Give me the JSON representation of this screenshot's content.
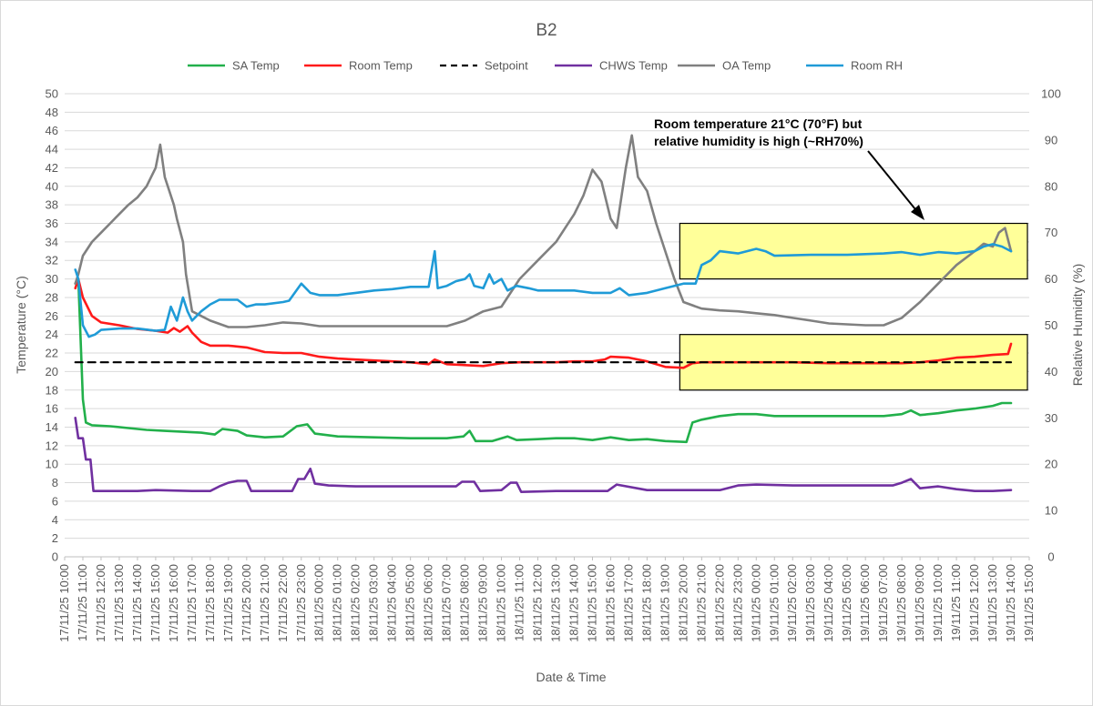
{
  "chart_data": {
    "type": "line",
    "title": "B2",
    "xlabel": "Date & Time",
    "ylabel": "Temperature (°C)",
    "y2label": "Relative Humidity (%)",
    "ylim": [
      0,
      50
    ],
    "y2lim": [
      0,
      100
    ],
    "yticks": [
      "0",
      "2",
      "4",
      "6",
      "8",
      "10",
      "12",
      "14",
      "16",
      "18",
      "20",
      "22",
      "24",
      "26",
      "28",
      "30",
      "32",
      "34",
      "36",
      "38",
      "40",
      "42",
      "44",
      "46",
      "48",
      "50"
    ],
    "y2ticks": [
      "0",
      "10",
      "20",
      "30",
      "40",
      "50",
      "60",
      "70",
      "80",
      "90",
      "100"
    ],
    "xlim": [
      "17/11/25 10:00",
      "19/11/25 15:00"
    ],
    "xticks": [
      "17/11/25 10:00",
      "17/11/25 11:00",
      "17/11/25 12:00",
      "17/11/25 13:00",
      "17/11/25 14:00",
      "17/11/25 15:00",
      "17/11/25 16:00",
      "17/11/25 17:00",
      "17/11/25 18:00",
      "17/11/25 19:00",
      "17/11/25 20:00",
      "17/11/25 21:00",
      "17/11/25 22:00",
      "17/11/25 23:00",
      "18/11/25 00:00",
      "18/11/25 01:00",
      "18/11/25 02:00",
      "18/11/25 03:00",
      "18/11/25 04:00",
      "18/11/25 05:00",
      "18/11/25 06:00",
      "18/11/25 07:00",
      "18/11/25 08:00",
      "18/11/25 09:00",
      "18/11/25 10:00",
      "18/11/25 11:00",
      "18/11/25 12:00",
      "18/11/25 13:00",
      "18/11/25 14:00",
      "18/11/25 15:00",
      "18/11/25 16:00",
      "18/11/25 17:00",
      "18/11/25 18:00",
      "18/11/25 19:00",
      "18/11/25 20:00",
      "18/11/25 21:00",
      "18/11/25 22:00",
      "18/11/25 23:00",
      "19/11/25 00:00",
      "19/11/25 01:00",
      "19/11/25 02:00",
      "19/11/25 03:00",
      "19/11/25 04:00",
      "19/11/25 05:00",
      "19/11/25 06:00",
      "19/11/25 07:00",
      "19/11/25 08:00",
      "19/11/25 09:00",
      "19/11/25 10:00",
      "19/11/25 11:00",
      "19/11/25 12:00",
      "19/11/25 13:00",
      "19/11/25 14:00",
      "19/11/25 15:00"
    ],
    "legend_position": "top",
    "grid": true,
    "series": [
      {
        "name": "SA Temp",
        "axis": "left",
        "color": "#22b04b",
        "dash": false,
        "x": [
          "17/11/25 10:35",
          "17/11/25 10:45",
          "17/11/25 11:00",
          "17/11/25 11:10",
          "17/11/25 11:30",
          "17/11/25 12:30",
          "17/11/25 13:30",
          "17/11/25 14:30",
          "17/11/25 15:30",
          "17/11/25 16:30",
          "17/11/25 17:30",
          "17/11/25 18:15",
          "17/11/25 18:40",
          "17/11/25 19:30",
          "17/11/25 20:00",
          "17/11/25 21:00",
          "17/11/25 22:00",
          "17/11/25 22:45",
          "17/11/25 23:20",
          "17/11/25 23:45",
          "18/11/25 01:00",
          "18/11/25 03:00",
          "18/11/25 05:00",
          "18/11/25 07:00",
          "18/11/25 07:55",
          "18/11/25 08:15",
          "18/11/25 08:35",
          "18/11/25 09:30",
          "18/11/25 10:20",
          "18/11/25 10:50",
          "18/11/25 12:00",
          "18/11/25 13:00",
          "18/11/25 14:00",
          "18/11/25 15:00",
          "18/11/25 16:00",
          "18/11/25 17:00",
          "18/11/25 18:00",
          "18/11/25 19:00",
          "18/11/25 20:10",
          "18/11/25 20:30",
          "18/11/25 21:00",
          "18/11/25 22:00",
          "18/11/25 23:00",
          "19/11/25 00:00",
          "19/11/25 01:00",
          "19/11/25 03:00",
          "19/11/25 05:00",
          "19/11/25 07:00",
          "19/11/25 08:00",
          "19/11/25 08:30",
          "19/11/25 09:00",
          "19/11/25 10:00",
          "19/11/25 11:00",
          "19/11/25 12:00",
          "19/11/25 13:00",
          "19/11/25 13:30",
          "19/11/25 14:00"
        ],
        "values": [
          29.5,
          30,
          17,
          14.5,
          14.2,
          14.1,
          13.9,
          13.7,
          13.6,
          13.5,
          13.4,
          13.2,
          13.8,
          13.6,
          13.1,
          12.9,
          13.0,
          14.1,
          14.3,
          13.3,
          13.0,
          12.9,
          12.8,
          12.8,
          13.0,
          13.6,
          12.5,
          12.5,
          13.0,
          12.6,
          12.7,
          12.8,
          12.8,
          12.6,
          12.9,
          12.6,
          12.7,
          12.5,
          12.4,
          14.5,
          14.8,
          15.2,
          15.4,
          15.4,
          15.2,
          15.2,
          15.2,
          15.2,
          15.4,
          15.8,
          15.3,
          15.5,
          15.8,
          16.0,
          16.3,
          16.6,
          16.6
        ]
      },
      {
        "name": "Room Temp",
        "axis": "left",
        "color": "#ff1a1a",
        "dash": false,
        "x": [
          "17/11/25 10:35",
          "17/11/25 10:45",
          "17/11/25 11:00",
          "17/11/25 11:30",
          "17/11/25 12:00",
          "17/11/25 13:00",
          "17/11/25 14:00",
          "17/11/25 15:00",
          "17/11/25 15:40",
          "17/11/25 16:00",
          "17/11/25 16:20",
          "17/11/25 16:45",
          "17/11/25 17:00",
          "17/11/25 17:30",
          "17/11/25 18:00",
          "17/11/25 19:00",
          "17/11/25 20:00",
          "17/11/25 21:00",
          "17/11/25 22:00",
          "17/11/25 23:00",
          "18/11/25 00:00",
          "18/11/25 01:00",
          "18/11/25 02:00",
          "18/11/25 03:00",
          "18/11/25 04:00",
          "18/11/25 05:00",
          "18/11/25 06:00",
          "18/11/25 06:20",
          "18/11/25 07:00",
          "18/11/25 08:00",
          "18/11/25 09:00",
          "18/11/25 10:00",
          "18/11/25 11:00",
          "18/11/25 12:00",
          "18/11/25 13:00",
          "18/11/25 14:00",
          "18/11/25 15:00",
          "18/11/25 15:40",
          "18/11/25 16:00",
          "18/11/25 17:00",
          "18/11/25 18:00",
          "18/11/25 19:00",
          "18/11/25 20:00",
          "18/11/25 20:30",
          "18/11/25 21:00",
          "18/11/25 22:00",
          "18/11/25 23:00",
          "19/11/25 00:00",
          "19/11/25 02:00",
          "19/11/25 04:00",
          "19/11/25 06:00",
          "19/11/25 08:00",
          "19/11/25 09:00",
          "19/11/25 10:00",
          "19/11/25 11:00",
          "19/11/25 12:00",
          "19/11/25 13:00",
          "19/11/25 13:50",
          "19/11/25 14:00"
        ],
        "values": [
          29,
          30,
          28,
          26,
          25.3,
          25,
          24.6,
          24.4,
          24.2,
          24.7,
          24.3,
          24.9,
          24.2,
          23.2,
          22.8,
          22.8,
          22.6,
          22.1,
          22.0,
          22.0,
          21.6,
          21.4,
          21.3,
          21.2,
          21.1,
          21.0,
          20.8,
          21.3,
          20.8,
          20.7,
          20.6,
          20.9,
          21.0,
          21.0,
          21.0,
          21.1,
          21.1,
          21.3,
          21.6,
          21.5,
          21.1,
          20.5,
          20.4,
          20.9,
          21.0,
          21.0,
          21.0,
          21.0,
          21.0,
          20.9,
          20.9,
          20.9,
          21.0,
          21.2,
          21.5,
          21.6,
          21.8,
          21.9,
          23.0
        ]
      },
      {
        "name": "Setpoint",
        "axis": "left",
        "color": "#000000",
        "dash": true,
        "x": [
          "17/11/25 10:35",
          "19/11/25 14:00"
        ],
        "values": [
          21,
          21
        ]
      },
      {
        "name": "CHWS Temp",
        "axis": "left",
        "color": "#7030a0",
        "dash": false,
        "x": [
          "17/11/25 10:35",
          "17/11/25 10:45",
          "17/11/25 11:00",
          "17/11/25 11:10",
          "17/11/25 11:25",
          "17/11/25 11:35",
          "17/11/25 12:00",
          "17/11/25 14:00",
          "17/11/25 15:00",
          "17/11/25 17:00",
          "17/11/25 18:00",
          "17/11/25 18:30",
          "17/11/25 19:00",
          "17/11/25 19:30",
          "17/11/25 20:00",
          "17/11/25 20:15",
          "17/11/25 21:00",
          "17/11/25 22:30",
          "17/11/25 22:50",
          "17/11/25 23:10",
          "17/11/25 23:30",
          "17/11/25 23:45",
          "18/11/25 00:30",
          "18/11/25 02:00",
          "18/11/25 04:00",
          "18/11/25 06:00",
          "18/11/25 07:30",
          "18/11/25 07:50",
          "18/11/25 08:30",
          "18/11/25 08:50",
          "18/11/25 10:00",
          "18/11/25 10:30",
          "18/11/25 10:50",
          "18/11/25 11:05",
          "18/11/25 13:00",
          "18/11/25 15:00",
          "18/11/25 15:50",
          "18/11/25 16:20",
          "18/11/25 18:00",
          "18/11/25 20:00",
          "18/11/25 21:00",
          "18/11/25 22:00",
          "18/11/25 23:00",
          "19/11/25 00:00",
          "19/11/25 02:00",
          "19/11/25 04:00",
          "19/11/25 06:00",
          "19/11/25 07:30",
          "19/11/25 08:00",
          "19/11/25 08:30",
          "19/11/25 09:00",
          "19/11/25 10:00",
          "19/11/25 11:00",
          "19/11/25 12:00",
          "19/11/25 13:00",
          "19/11/25 14:00"
        ],
        "values": [
          15,
          12.8,
          12.8,
          10.5,
          10.5,
          7.1,
          7.1,
          7.1,
          7.2,
          7.1,
          7.1,
          7.6,
          8.0,
          8.2,
          8.2,
          7.1,
          7.1,
          7.1,
          8.4,
          8.4,
          9.5,
          7.9,
          7.7,
          7.6,
          7.6,
          7.6,
          7.6,
          8.1,
          8.1,
          7.1,
          7.2,
          8.0,
          8.0,
          7.0,
          7.1,
          7.1,
          7.1,
          7.8,
          7.2,
          7.2,
          7.2,
          7.2,
          7.7,
          7.8,
          7.7,
          7.7,
          7.7,
          7.7,
          8.0,
          8.4,
          7.4,
          7.6,
          7.3,
          7.1,
          7.1,
          7.2
        ]
      },
      {
        "name": "OA Temp",
        "axis": "left",
        "color": "#808080",
        "dash": false,
        "x": [
          "17/11/25 10:35",
          "17/11/25 10:45",
          "17/11/25 11:00",
          "17/11/25 11:30",
          "17/11/25 12:00",
          "17/11/25 12:30",
          "17/11/25 13:00",
          "17/11/25 13:30",
          "17/11/25 14:00",
          "17/11/25 14:30",
          "17/11/25 15:00",
          "17/11/25 15:15",
          "17/11/25 15:30",
          "17/11/25 16:00",
          "17/11/25 16:10",
          "17/11/25 16:30",
          "17/11/25 16:40",
          "17/11/25 17:00",
          "17/11/25 17:30",
          "17/11/25 18:00",
          "17/11/25 19:00",
          "17/11/25 20:00",
          "17/11/25 21:00",
          "17/11/25 22:00",
          "17/11/25 23:00",
          "18/11/25 00:00",
          "18/11/25 02:00",
          "18/11/25 04:00",
          "18/11/25 06:00",
          "18/11/25 07:00",
          "18/11/25 08:00",
          "18/11/25 09:00",
          "18/11/25 10:00",
          "18/11/25 11:00",
          "18/11/25 12:00",
          "18/11/25 13:00",
          "18/11/25 13:30",
          "18/11/25 14:00",
          "18/11/25 14:30",
          "18/11/25 15:00",
          "18/11/25 15:30",
          "18/11/25 16:00",
          "18/11/25 16:20",
          "18/11/25 16:50",
          "18/11/25 17:10",
          "18/11/25 17:30",
          "18/11/25 18:00",
          "18/11/25 18:30",
          "18/11/25 19:00",
          "18/11/25 19:30",
          "18/11/25 20:00",
          "18/11/25 21:00",
          "18/11/25 22:00",
          "18/11/25 23:00",
          "19/11/25 00:00",
          "19/11/25 01:00",
          "19/11/25 02:00",
          "19/11/25 03:00",
          "19/11/25 04:00",
          "19/11/25 05:00",
          "19/11/25 06:00",
          "19/11/25 07:00",
          "19/11/25 08:00",
          "19/11/25 09:00",
          "19/11/25 10:00",
          "19/11/25 11:00",
          "19/11/25 12:00",
          "19/11/25 12:30",
          "19/11/25 13:00",
          "19/11/25 13:20",
          "19/11/25 13:40",
          "19/11/25 14:00"
        ],
        "values": [
          29.5,
          30.5,
          32.5,
          34,
          35,
          36,
          37,
          38,
          38.8,
          40,
          42,
          44.5,
          41,
          38,
          36.5,
          34,
          30.5,
          26.5,
          26,
          25.5,
          24.8,
          24.8,
          25.0,
          25.3,
          25.2,
          24.9,
          24.9,
          24.9,
          24.9,
          24.9,
          25.5,
          26.5,
          27,
          30,
          32,
          34,
          35.5,
          37,
          39,
          41.8,
          40.5,
          36.5,
          35.5,
          42,
          45.5,
          41,
          39.5,
          36,
          33,
          30,
          27.5,
          26.8,
          26.6,
          26.5,
          26.3,
          26.1,
          25.8,
          25.5,
          25.2,
          25.1,
          25.0,
          25.0,
          25.8,
          27.5,
          29.5,
          31.5,
          33,
          33.8,
          33.5,
          35,
          35.5,
          33
        ]
      },
      {
        "name": "Room RH",
        "axis": "right",
        "color": "#1f9bd7",
        "dash": false,
        "x": [
          "17/11/25 10:35",
          "17/11/25 10:45",
          "17/11/25 11:00",
          "17/11/25 11:20",
          "17/11/25 11:40",
          "17/11/25 12:00",
          "17/11/25 13:00",
          "17/11/25 14:00",
          "17/11/25 15:00",
          "17/11/25 15:30",
          "17/11/25 15:50",
          "17/11/25 16:10",
          "17/11/25 16:30",
          "17/11/25 16:45",
          "17/11/25 17:00",
          "17/11/25 17:30",
          "17/11/25 18:00",
          "17/11/25 18:30",
          "17/11/25 19:00",
          "17/11/25 19:30",
          "17/11/25 20:00",
          "17/11/25 20:30",
          "17/11/25 21:00",
          "17/11/25 22:00",
          "17/11/25 22:20",
          "17/11/25 23:00",
          "17/11/25 23:30",
          "18/11/25 00:00",
          "18/11/25 01:00",
          "18/11/25 02:00",
          "18/11/25 03:00",
          "18/11/25 04:00",
          "18/11/25 05:00",
          "18/11/25 06:00",
          "18/11/25 06:20",
          "18/11/25 06:30",
          "18/11/25 07:00",
          "18/11/25 07:30",
          "18/11/25 08:00",
          "18/11/25 08:15",
          "18/11/25 08:30",
          "18/11/25 09:00",
          "18/11/25 09:20",
          "18/11/25 09:35",
          "18/11/25 10:00",
          "18/11/25 10:20",
          "18/11/25 10:50",
          "18/11/25 11:30",
          "18/11/25 12:00",
          "18/11/25 13:00",
          "18/11/25 14:00",
          "18/11/25 15:00",
          "18/11/25 16:00",
          "18/11/25 16:30",
          "18/11/25 17:00",
          "18/11/25 18:00",
          "18/11/25 19:00",
          "18/11/25 20:00",
          "18/11/25 20:20",
          "18/11/25 20:40",
          "18/11/25 21:00",
          "18/11/25 21:30",
          "18/11/25 22:00",
          "18/11/25 23:00",
          "19/11/25 00:00",
          "19/11/25 00:30",
          "19/11/25 01:00",
          "19/11/25 03:00",
          "19/11/25 05:00",
          "19/11/25 07:00",
          "19/11/25 08:00",
          "19/11/25 08:30",
          "19/11/25 09:00",
          "19/11/25 10:00",
          "19/11/25 11:00",
          "19/11/25 12:00",
          "19/11/25 12:30",
          "19/11/25 13:00",
          "19/11/25 13:30",
          "19/11/25 14:00"
        ],
        "values": [
          62,
          60,
          50,
          47.5,
          48,
          49,
          49.3,
          49.3,
          48.8,
          49,
          54,
          51,
          56,
          53,
          51,
          53,
          54.5,
          55.5,
          55.5,
          55.5,
          54,
          54.5,
          54.5,
          55,
          55.3,
          59,
          57,
          56.5,
          56.5,
          57,
          57.5,
          57.8,
          58.3,
          58.3,
          66,
          58,
          58.5,
          59.5,
          60,
          61,
          58.5,
          58,
          61,
          59,
          60,
          57.5,
          58.5,
          58,
          57.5,
          57.5,
          57.5,
          57,
          57,
          58,
          56.5,
          57,
          58,
          59,
          59,
          59,
          63,
          64,
          66,
          65.5,
          66.5,
          66,
          65,
          65.2,
          65.2,
          65.5,
          65.8,
          65.5,
          65.2,
          65.8,
          65.5,
          66,
          67,
          67.5,
          67,
          66
        ]
      }
    ],
    "annotation": {
      "lines": [
        "Room temperature 21°C (70°F) but",
        "relative humidity is high (~RH70%)"
      ]
    },
    "highlight_regions": [
      {
        "x": [
          "18/11/25 20:00",
          "19/11/25 14:00"
        ],
        "y_left": [
          30,
          36
        ],
        "color": "#ffff99"
      },
      {
        "x": [
          "18/11/25 20:00",
          "19/11/25 14:00"
        ],
        "y_left": [
          18,
          24
        ],
        "color": "#ffff99"
      }
    ]
  }
}
